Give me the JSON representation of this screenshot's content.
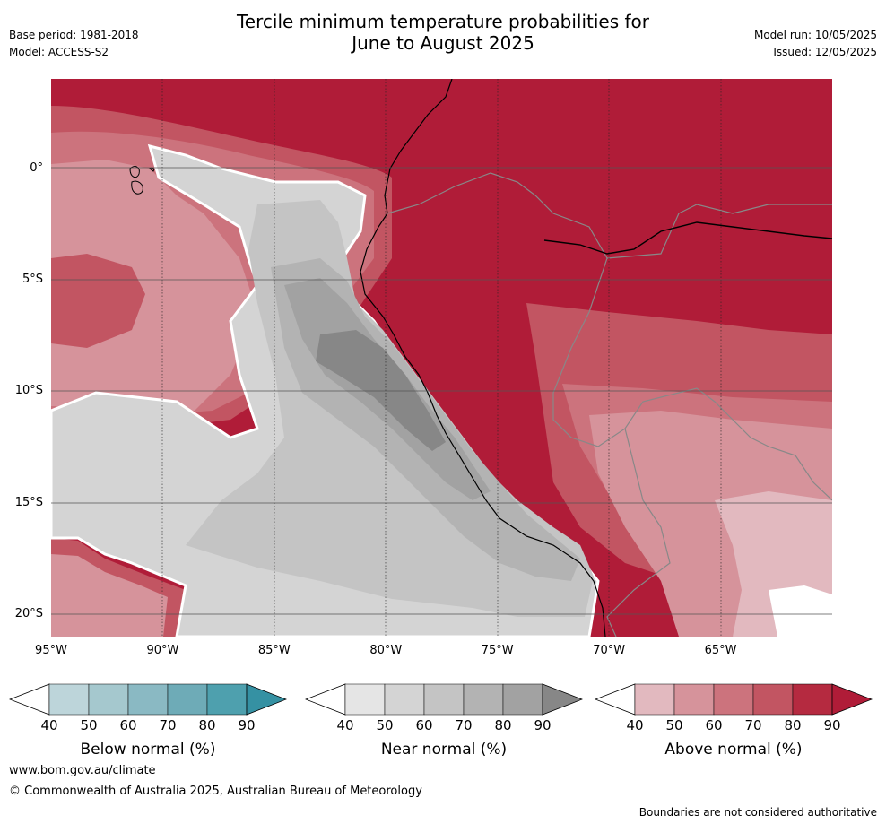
{
  "title_line1": "Tercile minimum temperature probabilities for",
  "title_line2": "June to August 2025",
  "meta_left": {
    "base_period": "Base period: 1981-2018",
    "model": "Model: ACCESS-S2"
  },
  "meta_right": {
    "model_run": "Model run: 10/05/2025",
    "issued": "Issued: 12/05/2025"
  },
  "lat_ticks": [
    {
      "label": "0°",
      "value": 0
    },
    {
      "label": "5°S",
      "value": -5
    },
    {
      "label": "10°S",
      "value": -10
    },
    {
      "label": "15°S",
      "value": -15
    },
    {
      "label": "20°S",
      "value": -20
    }
  ],
  "lon_ticks": [
    {
      "label": "95°W",
      "value": -95
    },
    {
      "label": "90°W",
      "value": -90
    },
    {
      "label": "85°W",
      "value": -85
    },
    {
      "label": "80°W",
      "value": -80
    },
    {
      "label": "75°W",
      "value": -75
    },
    {
      "label": "70°W",
      "value": -70
    },
    {
      "label": "65°W",
      "value": -65
    }
  ],
  "map_extent": {
    "lon_min": -95,
    "lon_max": -60,
    "lat_min": -21,
    "lat_max": 4
  },
  "colorbars": [
    {
      "title": "Below normal (%)",
      "ticks": [
        "40",
        "50",
        "60",
        "70",
        "80",
        "90"
      ],
      "colors": [
        "#bdd5da",
        "#a5c8ce",
        "#8ab9c3",
        "#6eabb7",
        "#4ea0ae",
        "#3591a3"
      ]
    },
    {
      "title": "Near normal (%)",
      "ticks": [
        "40",
        "50",
        "60",
        "70",
        "80",
        "90"
      ],
      "colors": [
        "#e5e5e5",
        "#d4d4d4",
        "#c4c4c4",
        "#b3b3b3",
        "#a2a2a2",
        "#878787"
      ]
    },
    {
      "title": "Above normal (%)",
      "ticks": [
        "40",
        "50",
        "60",
        "70",
        "80",
        "90"
      ],
      "colors": [
        "#e2b9bf",
        "#d6939b",
        "#cc737d",
        "#c25562",
        "#b52a40",
        "#b01c38"
      ]
    }
  ],
  "footer": {
    "url": "www.bom.gov.au/climate",
    "copyright": "© Commonwealth of Australia 2025, Australian Bureau of Meteorology",
    "disclaimer": "Boundaries are not considered authoritative"
  }
}
